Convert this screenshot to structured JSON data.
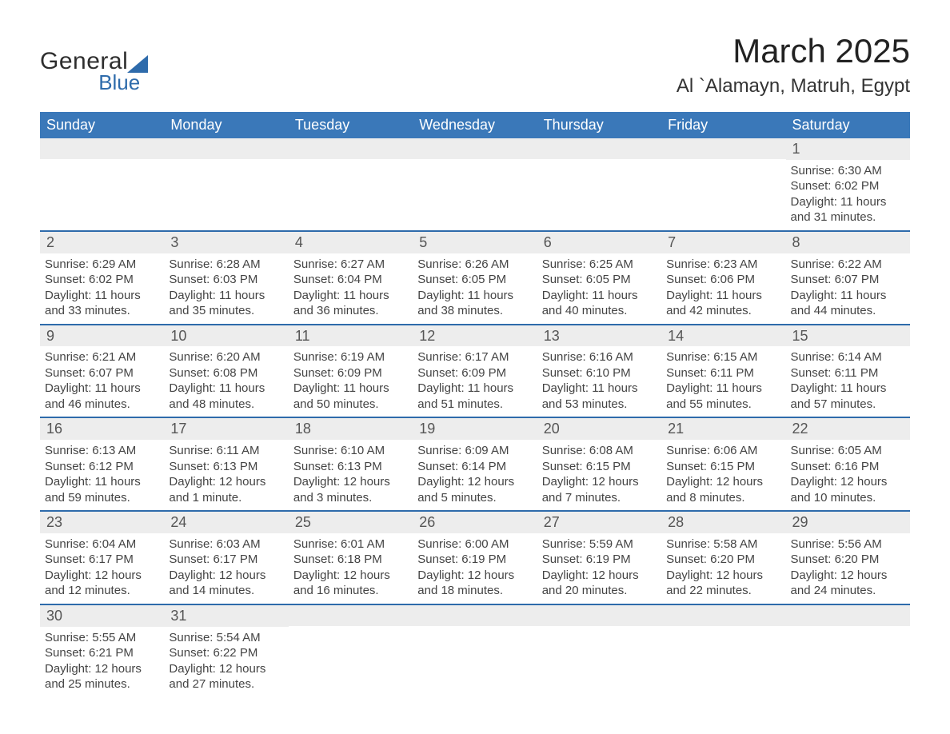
{
  "brand": {
    "name_part1": "General",
    "name_part2": "Blue",
    "accent_color": "#2e6bab"
  },
  "title": "March 2025",
  "location": "Al `Alamayn, Matruh, Egypt",
  "colors": {
    "header_bg": "#3a78b9",
    "header_text": "#ffffff",
    "row_border": "#2e6bab",
    "daynum_bg": "#ededed",
    "text": "#3a3a3a"
  },
  "weekdays": [
    "Sunday",
    "Monday",
    "Tuesday",
    "Wednesday",
    "Thursday",
    "Friday",
    "Saturday"
  ],
  "weeks": [
    [
      null,
      null,
      null,
      null,
      null,
      null,
      {
        "n": "1",
        "sr": "Sunrise: 6:30 AM",
        "ss": "Sunset: 6:02 PM",
        "dl": "Daylight: 11 hours and 31 minutes."
      }
    ],
    [
      {
        "n": "2",
        "sr": "Sunrise: 6:29 AM",
        "ss": "Sunset: 6:02 PM",
        "dl": "Daylight: 11 hours and 33 minutes."
      },
      {
        "n": "3",
        "sr": "Sunrise: 6:28 AM",
        "ss": "Sunset: 6:03 PM",
        "dl": "Daylight: 11 hours and 35 minutes."
      },
      {
        "n": "4",
        "sr": "Sunrise: 6:27 AM",
        "ss": "Sunset: 6:04 PM",
        "dl": "Daylight: 11 hours and 36 minutes."
      },
      {
        "n": "5",
        "sr": "Sunrise: 6:26 AM",
        "ss": "Sunset: 6:05 PM",
        "dl": "Daylight: 11 hours and 38 minutes."
      },
      {
        "n": "6",
        "sr": "Sunrise: 6:25 AM",
        "ss": "Sunset: 6:05 PM",
        "dl": "Daylight: 11 hours and 40 minutes."
      },
      {
        "n": "7",
        "sr": "Sunrise: 6:23 AM",
        "ss": "Sunset: 6:06 PM",
        "dl": "Daylight: 11 hours and 42 minutes."
      },
      {
        "n": "8",
        "sr": "Sunrise: 6:22 AM",
        "ss": "Sunset: 6:07 PM",
        "dl": "Daylight: 11 hours and 44 minutes."
      }
    ],
    [
      {
        "n": "9",
        "sr": "Sunrise: 6:21 AM",
        "ss": "Sunset: 6:07 PM",
        "dl": "Daylight: 11 hours and 46 minutes."
      },
      {
        "n": "10",
        "sr": "Sunrise: 6:20 AM",
        "ss": "Sunset: 6:08 PM",
        "dl": "Daylight: 11 hours and 48 minutes."
      },
      {
        "n": "11",
        "sr": "Sunrise: 6:19 AM",
        "ss": "Sunset: 6:09 PM",
        "dl": "Daylight: 11 hours and 50 minutes."
      },
      {
        "n": "12",
        "sr": "Sunrise: 6:17 AM",
        "ss": "Sunset: 6:09 PM",
        "dl": "Daylight: 11 hours and 51 minutes."
      },
      {
        "n": "13",
        "sr": "Sunrise: 6:16 AM",
        "ss": "Sunset: 6:10 PM",
        "dl": "Daylight: 11 hours and 53 minutes."
      },
      {
        "n": "14",
        "sr": "Sunrise: 6:15 AM",
        "ss": "Sunset: 6:11 PM",
        "dl": "Daylight: 11 hours and 55 minutes."
      },
      {
        "n": "15",
        "sr": "Sunrise: 6:14 AM",
        "ss": "Sunset: 6:11 PM",
        "dl": "Daylight: 11 hours and 57 minutes."
      }
    ],
    [
      {
        "n": "16",
        "sr": "Sunrise: 6:13 AM",
        "ss": "Sunset: 6:12 PM",
        "dl": "Daylight: 11 hours and 59 minutes."
      },
      {
        "n": "17",
        "sr": "Sunrise: 6:11 AM",
        "ss": "Sunset: 6:13 PM",
        "dl": "Daylight: 12 hours and 1 minute."
      },
      {
        "n": "18",
        "sr": "Sunrise: 6:10 AM",
        "ss": "Sunset: 6:13 PM",
        "dl": "Daylight: 12 hours and 3 minutes."
      },
      {
        "n": "19",
        "sr": "Sunrise: 6:09 AM",
        "ss": "Sunset: 6:14 PM",
        "dl": "Daylight: 12 hours and 5 minutes."
      },
      {
        "n": "20",
        "sr": "Sunrise: 6:08 AM",
        "ss": "Sunset: 6:15 PM",
        "dl": "Daylight: 12 hours and 7 minutes."
      },
      {
        "n": "21",
        "sr": "Sunrise: 6:06 AM",
        "ss": "Sunset: 6:15 PM",
        "dl": "Daylight: 12 hours and 8 minutes."
      },
      {
        "n": "22",
        "sr": "Sunrise: 6:05 AM",
        "ss": "Sunset: 6:16 PM",
        "dl": "Daylight: 12 hours and 10 minutes."
      }
    ],
    [
      {
        "n": "23",
        "sr": "Sunrise: 6:04 AM",
        "ss": "Sunset: 6:17 PM",
        "dl": "Daylight: 12 hours and 12 minutes."
      },
      {
        "n": "24",
        "sr": "Sunrise: 6:03 AM",
        "ss": "Sunset: 6:17 PM",
        "dl": "Daylight: 12 hours and 14 minutes."
      },
      {
        "n": "25",
        "sr": "Sunrise: 6:01 AM",
        "ss": "Sunset: 6:18 PM",
        "dl": "Daylight: 12 hours and 16 minutes."
      },
      {
        "n": "26",
        "sr": "Sunrise: 6:00 AM",
        "ss": "Sunset: 6:19 PM",
        "dl": "Daylight: 12 hours and 18 minutes."
      },
      {
        "n": "27",
        "sr": "Sunrise: 5:59 AM",
        "ss": "Sunset: 6:19 PM",
        "dl": "Daylight: 12 hours and 20 minutes."
      },
      {
        "n": "28",
        "sr": "Sunrise: 5:58 AM",
        "ss": "Sunset: 6:20 PM",
        "dl": "Daylight: 12 hours and 22 minutes."
      },
      {
        "n": "29",
        "sr": "Sunrise: 5:56 AM",
        "ss": "Sunset: 6:20 PM",
        "dl": "Daylight: 12 hours and 24 minutes."
      }
    ],
    [
      {
        "n": "30",
        "sr": "Sunrise: 5:55 AM",
        "ss": "Sunset: 6:21 PM",
        "dl": "Daylight: 12 hours and 25 minutes."
      },
      {
        "n": "31",
        "sr": "Sunrise: 5:54 AM",
        "ss": "Sunset: 6:22 PM",
        "dl": "Daylight: 12 hours and 27 minutes."
      },
      null,
      null,
      null,
      null,
      null
    ]
  ]
}
